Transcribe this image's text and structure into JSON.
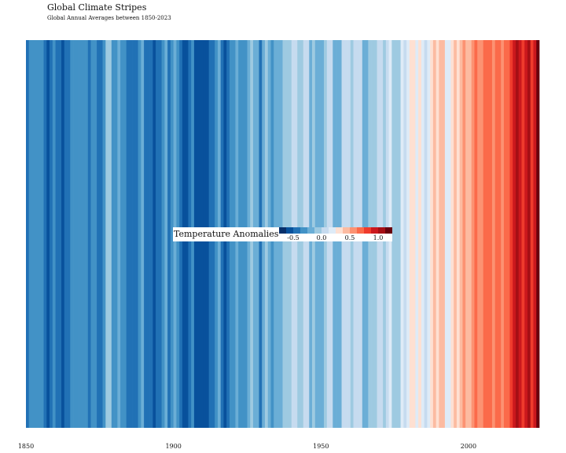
{
  "title": "Global Climate Stripes",
  "subtitle": "Global Annual Averages between 1850-2023",
  "chart_data": {
    "type": "heatmap",
    "title": "Global Climate Stripes",
    "subtitle": "Global Annual Averages between 1850-2023",
    "x_range": [
      1850,
      2024
    ],
    "x_ticks": [
      1850,
      1900,
      1950,
      2000
    ],
    "years": [
      1850,
      1851,
      1852,
      1853,
      1854,
      1855,
      1856,
      1857,
      1858,
      1859,
      1860,
      1861,
      1862,
      1863,
      1864,
      1865,
      1866,
      1867,
      1868,
      1869,
      1870,
      1871,
      1872,
      1873,
      1874,
      1875,
      1876,
      1877,
      1878,
      1879,
      1880,
      1881,
      1882,
      1883,
      1884,
      1885,
      1886,
      1887,
      1888,
      1889,
      1890,
      1891,
      1892,
      1893,
      1894,
      1895,
      1896,
      1897,
      1898,
      1899,
      1900,
      1901,
      1902,
      1903,
      1904,
      1905,
      1906,
      1907,
      1908,
      1909,
      1910,
      1911,
      1912,
      1913,
      1914,
      1915,
      1916,
      1917,
      1918,
      1919,
      1920,
      1921,
      1922,
      1923,
      1924,
      1925,
      1926,
      1927,
      1928,
      1929,
      1930,
      1931,
      1932,
      1933,
      1934,
      1935,
      1936,
      1937,
      1938,
      1939,
      1940,
      1941,
      1942,
      1943,
      1944,
      1945,
      1946,
      1947,
      1948,
      1949,
      1950,
      1951,
      1952,
      1953,
      1954,
      1955,
      1956,
      1957,
      1958,
      1959,
      1960,
      1961,
      1962,
      1963,
      1964,
      1965,
      1966,
      1967,
      1968,
      1969,
      1970,
      1971,
      1972,
      1973,
      1974,
      1975,
      1976,
      1977,
      1978,
      1979,
      1980,
      1981,
      1982,
      1983,
      1984,
      1985,
      1986,
      1987,
      1988,
      1989,
      1990,
      1991,
      1992,
      1993,
      1994,
      1995,
      1996,
      1997,
      1998,
      1999,
      2000,
      2001,
      2002,
      2003,
      2004,
      2005,
      2006,
      2007,
      2008,
      2009,
      2010,
      2011,
      2012,
      2013,
      2014,
      2015,
      2016,
      2017,
      2018,
      2019,
      2020,
      2021,
      2022,
      2023
    ],
    "values": [
      -0.42,
      -0.33,
      -0.32,
      -0.35,
      -0.33,
      -0.36,
      -0.45,
      -0.55,
      -0.44,
      -0.37,
      -0.42,
      -0.48,
      -0.58,
      -0.39,
      -0.49,
      -0.37,
      -0.32,
      -0.35,
      -0.32,
      -0.31,
      -0.34,
      -0.41,
      -0.35,
      -0.34,
      -0.39,
      -0.42,
      -0.36,
      -0.08,
      -0.05,
      -0.35,
      -0.34,
      -0.25,
      -0.28,
      -0.37,
      -0.46,
      -0.48,
      -0.43,
      -0.47,
      -0.34,
      -0.22,
      -0.5,
      -0.41,
      -0.48,
      -0.53,
      -0.49,
      -0.42,
      -0.27,
      -0.25,
      -0.42,
      -0.32,
      -0.22,
      -0.29,
      -0.44,
      -0.53,
      -0.6,
      -0.44,
      -0.36,
      -0.56,
      -0.59,
      -0.6,
      -0.56,
      -0.62,
      -0.48,
      -0.48,
      -0.26,
      -0.18,
      -0.42,
      -0.55,
      -0.44,
      -0.35,
      -0.32,
      -0.24,
      -0.35,
      -0.31,
      -0.33,
      -0.24,
      -0.12,
      -0.24,
      -0.23,
      -0.38,
      -0.17,
      -0.1,
      -0.16,
      -0.33,
      -0.16,
      -0.2,
      -0.15,
      -0.03,
      -0.03,
      -0.02,
      0.05,
      0.03,
      -0.02,
      -0.01,
      0.12,
      0.01,
      -0.15,
      -0.1,
      -0.13,
      -0.17,
      -0.22,
      -0.07,
      0.0,
      0.05,
      -0.14,
      -0.16,
      -0.25,
      0.02,
      0.06,
      0.03,
      -0.04,
      0.01,
      0.04,
      0.07,
      -0.21,
      -0.14,
      -0.05,
      -0.02,
      -0.07,
      0.04,
      0.04,
      -0.08,
      0.01,
      0.15,
      -0.09,
      -0.01,
      -0.11,
      0.18,
      0.07,
      0.17,
      0.26,
      0.32,
      0.14,
      0.31,
      0.16,
      0.12,
      0.18,
      0.33,
      0.4,
      0.28,
      0.44,
      0.41,
      0.23,
      0.24,
      0.31,
      0.45,
      0.34,
      0.46,
      0.61,
      0.38,
      0.39,
      0.53,
      0.63,
      0.62,
      0.53,
      0.68,
      0.64,
      0.66,
      0.54,
      0.66,
      0.72,
      0.61,
      0.65,
      0.68,
      0.75,
      0.9,
      1.01,
      0.92,
      0.85,
      0.98,
      1.01,
      0.85,
      0.89,
      1.17
    ],
    "colorbar": {
      "title": "Temperature Anomalies",
      "range": [
        -0.75,
        1.25
      ],
      "ticks": [
        -0.5,
        0.0,
        0.5,
        1.0
      ],
      "tick_labels": [
        "-0.5",
        "0.0",
        "0.5",
        "1.0"
      ],
      "colors": [
        "#08306b",
        "#08519c",
        "#2171b5",
        "#4292c6",
        "#6baed6",
        "#9ecae1",
        "#c6dbef",
        "#deebf7",
        "#fee0d2",
        "#fcbba1",
        "#fc9272",
        "#fb6a4a",
        "#ef3b2c",
        "#cb181d",
        "#a50f15",
        "#67000d"
      ]
    }
  }
}
